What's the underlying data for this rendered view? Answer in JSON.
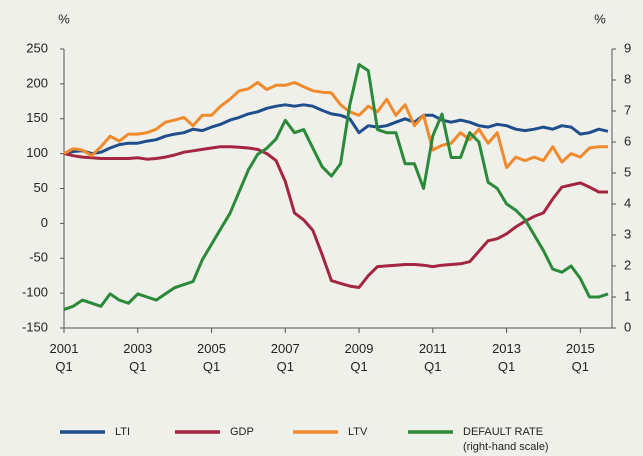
{
  "chart_data": {
    "type": "line",
    "y_unit": "%",
    "y2_unit": "%",
    "categories": [
      "2001\nQ1",
      null,
      null,
      null,
      null,
      null,
      null,
      null,
      "2003\nQ1",
      null,
      null,
      null,
      null,
      null,
      null,
      null,
      "2005\nQ1",
      null,
      null,
      null,
      null,
      null,
      null,
      null,
      "2007\nQ1",
      null,
      null,
      null,
      null,
      null,
      null,
      null,
      "2009\nQ1",
      null,
      null,
      null,
      null,
      null,
      null,
      null,
      "2011\nQ1",
      null,
      null,
      null,
      null,
      null,
      null,
      null,
      "2013\nQ1",
      null,
      null,
      null,
      null,
      null,
      null,
      null,
      "2015\nQ1",
      null,
      null,
      null
    ],
    "ylim": [
      -150,
      250
    ],
    "yticks": [
      -150,
      -100,
      -50,
      0,
      50,
      100,
      150,
      200,
      250
    ],
    "y2lim": [
      0,
      9
    ],
    "y2ticks": [
      0,
      1,
      2,
      3,
      4,
      5,
      6,
      7,
      8,
      9
    ],
    "series": [
      {
        "name": "LTI",
        "color": "#1f4e8c",
        "values": [
          100,
          103,
          104,
          100,
          102,
          108,
          113,
          115,
          115,
          118,
          120,
          125,
          128,
          130,
          135,
          133,
          138,
          142,
          148,
          152,
          157,
          160,
          165,
          168,
          170,
          168,
          170,
          168,
          162,
          157,
          155,
          150,
          130,
          140,
          138,
          140,
          145,
          150,
          145,
          155,
          155,
          148,
          145,
          148,
          145,
          140,
          138,
          142,
          140,
          135,
          133,
          135,
          138,
          135,
          140,
          138,
          128,
          130,
          135,
          132
        ]
      },
      {
        "name": "GDP",
        "color": "#a3253f",
        "values": [
          100,
          97,
          95,
          94,
          93,
          93,
          93,
          93,
          94,
          92,
          93,
          95,
          98,
          102,
          104,
          106,
          108,
          110,
          110,
          109,
          108,
          106,
          100,
          90,
          60,
          15,
          5,
          -10,
          -45,
          -82,
          -86,
          -90,
          -92,
          -75,
          -62,
          -61,
          -60,
          -59,
          -59,
          -60,
          -62,
          -60,
          -59,
          -58,
          -55,
          -40,
          -25,
          -22,
          -15,
          -5,
          3,
          10,
          15,
          35,
          52,
          55,
          58,
          52,
          45,
          45
        ]
      },
      {
        "name": "LTV",
        "color": "#f08a2c",
        "values": [
          100,
          107,
          105,
          97,
          110,
          125,
          118,
          128,
          128,
          130,
          135,
          145,
          148,
          152,
          140,
          155,
          155,
          168,
          178,
          190,
          193,
          202,
          192,
          198,
          198,
          202,
          196,
          190,
          188,
          187,
          170,
          160,
          155,
          168,
          160,
          178,
          155,
          170,
          140,
          155,
          105,
          112,
          115,
          130,
          120,
          135,
          115,
          130,
          80,
          95,
          90,
          95,
          90,
          110,
          88,
          100,
          95,
          108,
          110,
          110
        ]
      },
      {
        "name": "DEFAULT RATE",
        "note": "(right-hand scale)",
        "axis": "y2",
        "color": "#2a8a3a",
        "values": [
          0.6,
          0.7,
          0.9,
          0.8,
          0.7,
          1.1,
          0.9,
          0.8,
          1.1,
          1.0,
          0.9,
          1.1,
          1.3,
          1.4,
          1.5,
          2.2,
          2.7,
          3.2,
          3.7,
          4.4,
          5.1,
          5.6,
          5.8,
          6.1,
          6.7,
          6.3,
          6.4,
          5.8,
          5.2,
          4.9,
          5.3,
          7.2,
          8.5,
          8.3,
          6.4,
          6.3,
          6.3,
          5.3,
          5.3,
          4.5,
          6.2,
          6.9,
          5.5,
          5.5,
          6.3,
          6.0,
          4.7,
          4.5,
          4.0,
          3.8,
          3.5,
          3.0,
          2.5,
          1.9,
          1.8,
          2.0,
          1.6,
          1.0,
          1.0,
          1.1
        ]
      }
    ]
  }
}
